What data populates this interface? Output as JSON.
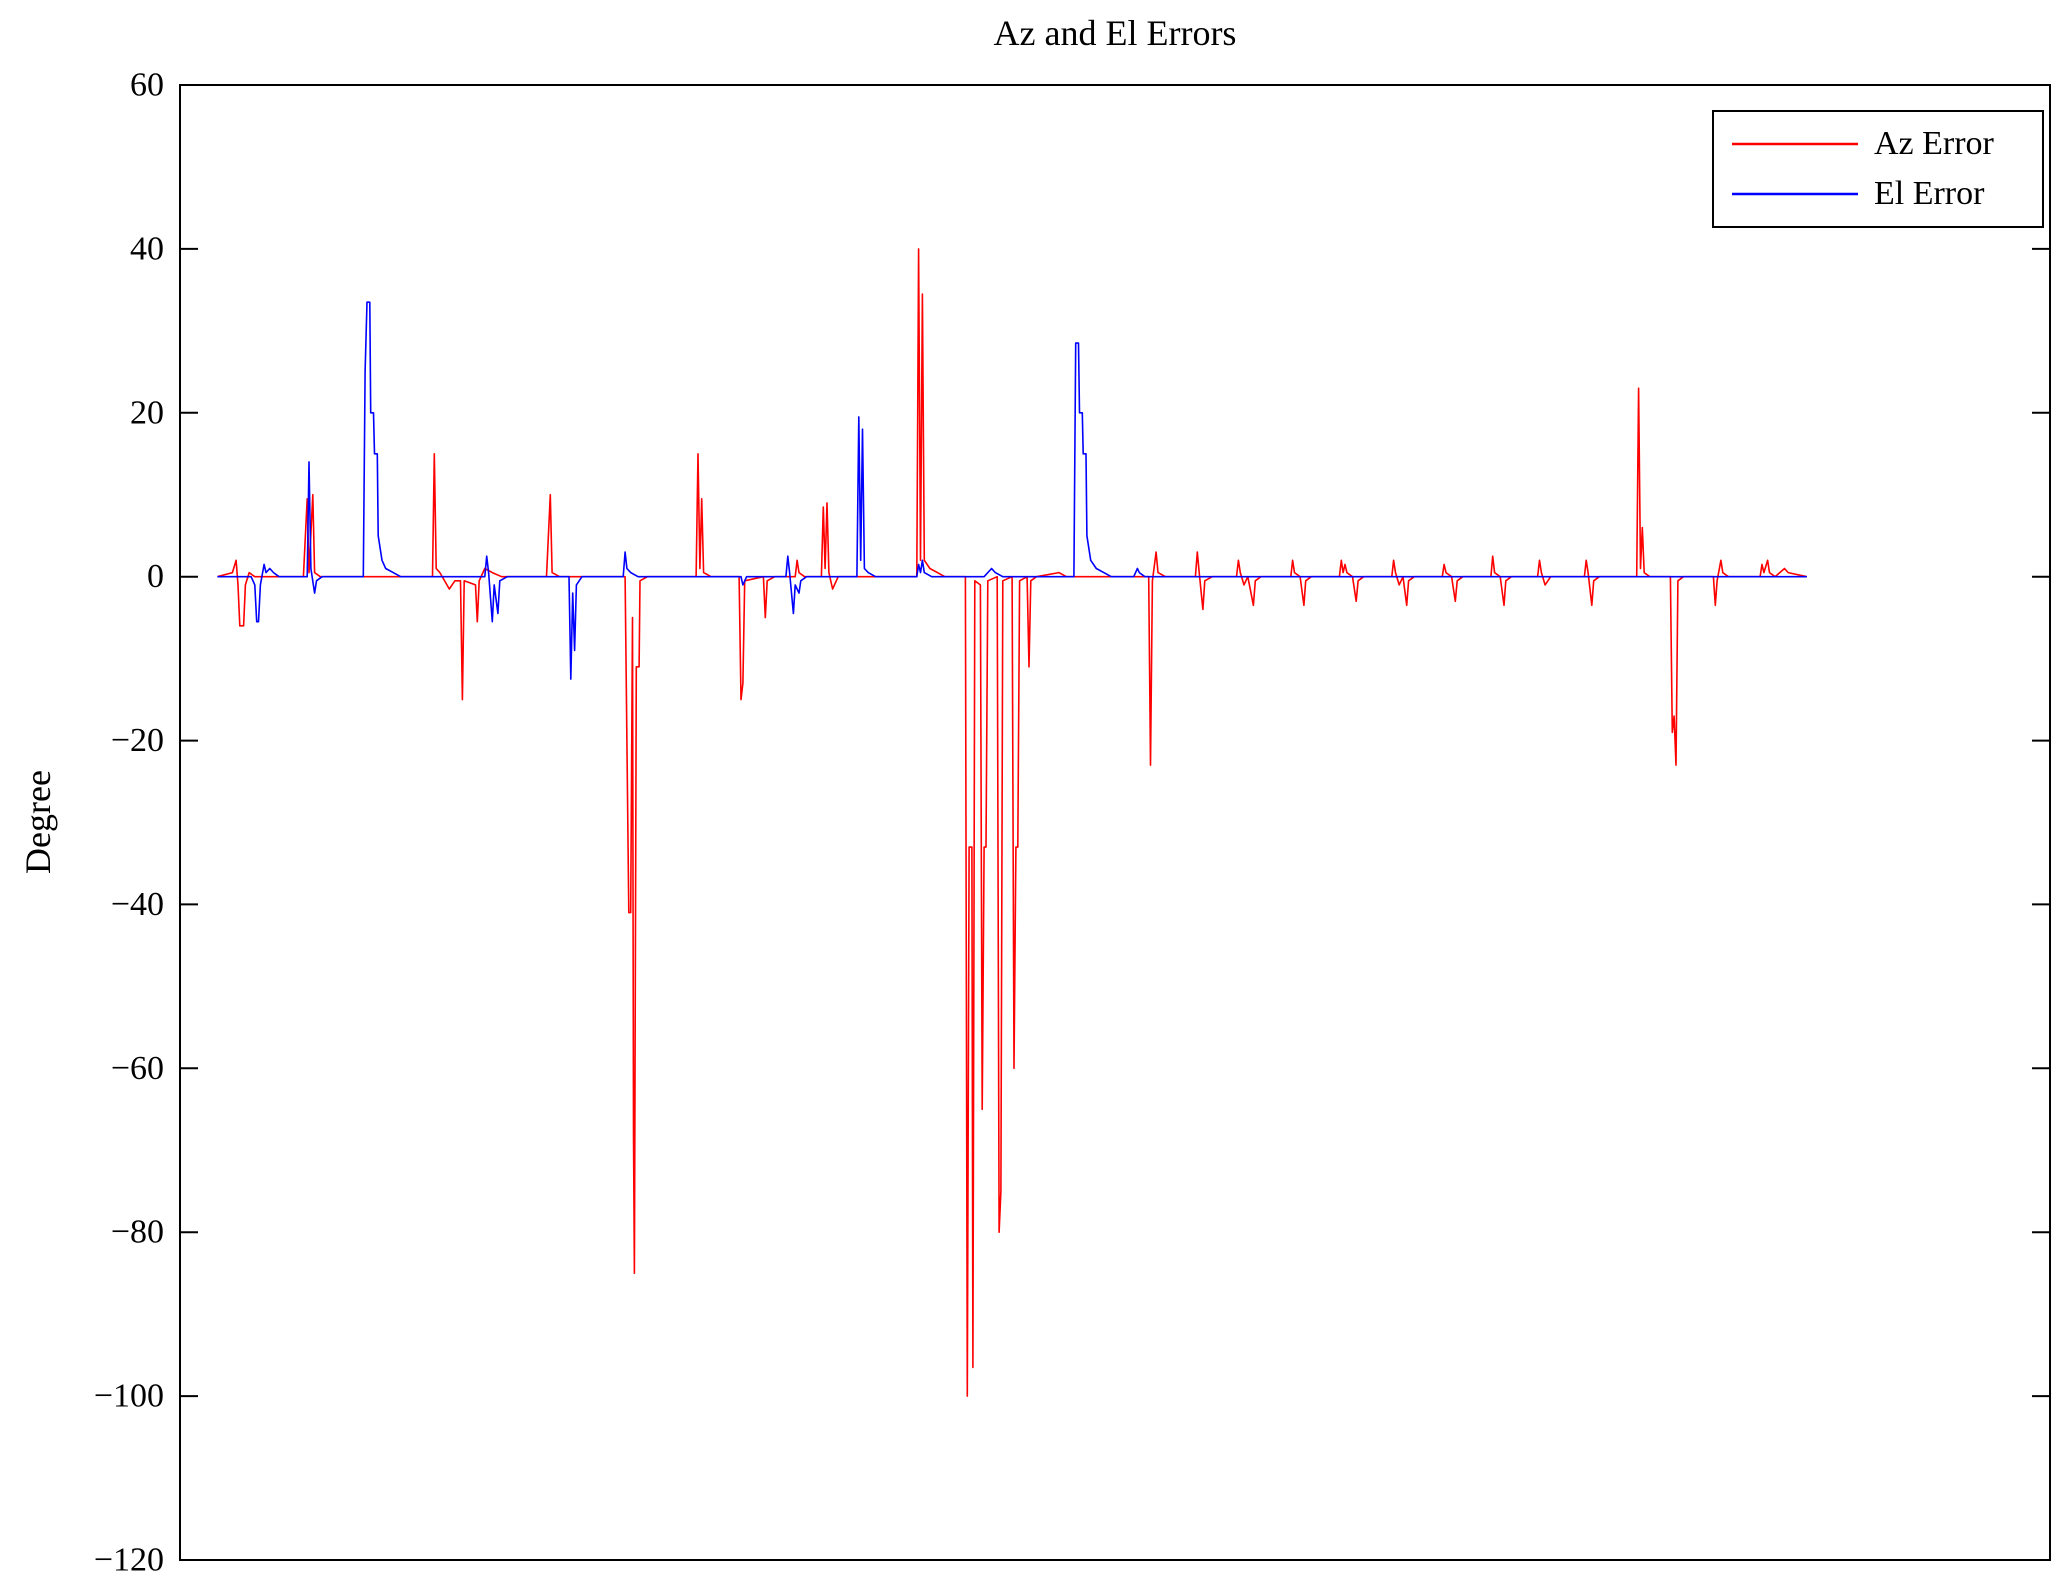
{
  "figure": {
    "title": "Az and El Errors",
    "ylabel": "Degree"
  },
  "chart_data": {
    "type": "line",
    "title": "Az and El Errors",
    "xlabel": "",
    "ylabel": "Degree",
    "ylim": [
      -120,
      60
    ],
    "xlim": [
      0,
      1
    ],
    "yticks": [
      60,
      40,
      20,
      0,
      -20,
      -40,
      -60,
      -80,
      -100,
      -120
    ],
    "x_tick_labels_visible": false,
    "grid": false,
    "background_color": "#ffffff",
    "axis_color": "#000000",
    "legend": {
      "position": "top-right",
      "entries": [
        "Az Error",
        "El Error"
      ]
    },
    "series": [
      {
        "name": "Az Error",
        "color": "#ff0000",
        "points": [
          [
            0.02,
            0
          ],
          [
            0.028,
            0.5
          ],
          [
            0.03,
            2
          ],
          [
            0.031,
            -1
          ],
          [
            0.032,
            -6
          ],
          [
            0.034,
            -6
          ],
          [
            0.035,
            -1
          ],
          [
            0.037,
            0.5
          ],
          [
            0.04,
            0
          ],
          [
            0.066,
            0
          ],
          [
            0.068,
            9.5
          ],
          [
            0.069,
            0.5
          ],
          [
            0.071,
            10
          ],
          [
            0.072,
            0.5
          ],
          [
            0.075,
            0
          ],
          [
            0.135,
            0
          ],
          [
            0.136,
            15
          ],
          [
            0.137,
            1
          ],
          [
            0.139,
            0.5
          ],
          [
            0.144,
            -1.5
          ],
          [
            0.147,
            -0.5
          ],
          [
            0.15,
            -0.5
          ],
          [
            0.151,
            -15
          ],
          [
            0.152,
            -0.5
          ],
          [
            0.158,
            -1
          ],
          [
            0.159,
            -5.5
          ],
          [
            0.16,
            -0.5
          ],
          [
            0.163,
            1
          ],
          [
            0.167,
            0.5
          ],
          [
            0.172,
            0
          ],
          [
            0.196,
            0
          ],
          [
            0.198,
            10
          ],
          [
            0.199,
            0.5
          ],
          [
            0.203,
            0
          ],
          [
            0.238,
            0
          ],
          [
            0.24,
            -41
          ],
          [
            0.241,
            -41
          ],
          [
            0.242,
            -5
          ],
          [
            0.2425,
            -68
          ],
          [
            0.243,
            -85
          ],
          [
            0.244,
            -11
          ],
          [
            0.2455,
            -11
          ],
          [
            0.246,
            -0.5
          ],
          [
            0.25,
            0
          ],
          [
            0.276,
            0
          ],
          [
            0.277,
            15
          ],
          [
            0.278,
            1
          ],
          [
            0.279,
            9.5
          ],
          [
            0.28,
            0.5
          ],
          [
            0.284,
            0
          ],
          [
            0.299,
            0
          ],
          [
            0.3,
            -15
          ],
          [
            0.301,
            -13
          ],
          [
            0.302,
            -0.5
          ],
          [
            0.312,
            0
          ],
          [
            0.313,
            -5
          ],
          [
            0.314,
            -0.5
          ],
          [
            0.318,
            0
          ],
          [
            0.329,
            0
          ],
          [
            0.33,
            2
          ],
          [
            0.331,
            0.5
          ],
          [
            0.334,
            0
          ],
          [
            0.343,
            0
          ],
          [
            0.344,
            8.5
          ],
          [
            0.345,
            1
          ],
          [
            0.346,
            9
          ],
          [
            0.347,
            0.5
          ],
          [
            0.349,
            -1.5
          ],
          [
            0.352,
            0
          ],
          [
            0.394,
            0
          ],
          [
            0.395,
            40
          ],
          [
            0.396,
            2
          ],
          [
            0.397,
            34.5
          ],
          [
            0.398,
            2
          ],
          [
            0.401,
            1
          ],
          [
            0.405,
            0.5
          ],
          [
            0.409,
            0
          ],
          [
            0.42,
            0
          ],
          [
            0.421,
            -100
          ],
          [
            0.422,
            -33
          ],
          [
            0.4235,
            -33
          ],
          [
            0.424,
            -96.5
          ],
          [
            0.425,
            -0.5
          ],
          [
            0.428,
            -1
          ],
          [
            0.429,
            -65
          ],
          [
            0.43,
            -33
          ],
          [
            0.431,
            -33
          ],
          [
            0.432,
            -0.5
          ],
          [
            0.437,
            0
          ],
          [
            0.438,
            -80
          ],
          [
            0.439,
            -75
          ],
          [
            0.44,
            -0.5
          ],
          [
            0.445,
            0
          ],
          [
            0.446,
            -60
          ],
          [
            0.447,
            -33
          ],
          [
            0.448,
            -33
          ],
          [
            0.449,
            -0.5
          ],
          [
            0.453,
            0
          ],
          [
            0.454,
            -11
          ],
          [
            0.455,
            -0.5
          ],
          [
            0.458,
            0
          ],
          [
            0.47,
            0.5
          ],
          [
            0.474,
            0
          ],
          [
            0.518,
            0
          ],
          [
            0.519,
            -23
          ],
          [
            0.52,
            -0.5
          ],
          [
            0.522,
            3
          ],
          [
            0.523,
            0.5
          ],
          [
            0.527,
            0
          ],
          [
            0.543,
            0
          ],
          [
            0.544,
            3
          ],
          [
            0.545,
            0.5
          ],
          [
            0.547,
            -4
          ],
          [
            0.548,
            -0.5
          ],
          [
            0.552,
            0
          ],
          [
            0.565,
            0
          ],
          [
            0.566,
            2
          ],
          [
            0.567,
            0.5
          ],
          [
            0.569,
            -1
          ],
          [
            0.571,
            0
          ],
          [
            0.574,
            -3.5
          ],
          [
            0.575,
            -0.5
          ],
          [
            0.578,
            0
          ],
          [
            0.594,
            0
          ],
          [
            0.595,
            2
          ],
          [
            0.596,
            0.5
          ],
          [
            0.599,
            0
          ],
          [
            0.601,
            -3.5
          ],
          [
            0.602,
            -0.5
          ],
          [
            0.605,
            0
          ],
          [
            0.62,
            0
          ],
          [
            0.621,
            2
          ],
          [
            0.622,
            0.5
          ],
          [
            0.623,
            1.5
          ],
          [
            0.624,
            0.5
          ],
          [
            0.627,
            0
          ],
          [
            0.629,
            -3
          ],
          [
            0.63,
            -0.5
          ],
          [
            0.633,
            0
          ],
          [
            0.648,
            0
          ],
          [
            0.649,
            2
          ],
          [
            0.65,
            0.5
          ],
          [
            0.652,
            -1
          ],
          [
            0.654,
            0
          ],
          [
            0.656,
            -3.5
          ],
          [
            0.657,
            -0.5
          ],
          [
            0.66,
            0
          ],
          [
            0.675,
            0
          ],
          [
            0.676,
            1.5
          ],
          [
            0.677,
            0.5
          ],
          [
            0.68,
            0
          ],
          [
            0.682,
            -3
          ],
          [
            0.683,
            -0.5
          ],
          [
            0.686,
            0
          ],
          [
            0.701,
            0
          ],
          [
            0.702,
            2.5
          ],
          [
            0.703,
            0.5
          ],
          [
            0.706,
            0
          ],
          [
            0.708,
            -3.5
          ],
          [
            0.709,
            -0.5
          ],
          [
            0.712,
            0
          ],
          [
            0.726,
            0
          ],
          [
            0.727,
            2
          ],
          [
            0.728,
            0.5
          ],
          [
            0.73,
            -1
          ],
          [
            0.733,
            0
          ],
          [
            0.751,
            0
          ],
          [
            0.752,
            2
          ],
          [
            0.753,
            0.5
          ],
          [
            0.755,
            -3.5
          ],
          [
            0.756,
            -0.5
          ],
          [
            0.759,
            0
          ],
          [
            0.779,
            0
          ],
          [
            0.78,
            23
          ],
          [
            0.781,
            1
          ],
          [
            0.782,
            6
          ],
          [
            0.783,
            0.5
          ],
          [
            0.786,
            0
          ],
          [
            0.797,
            0
          ],
          [
            0.798,
            -19
          ],
          [
            0.799,
            -17
          ],
          [
            0.8,
            -23
          ],
          [
            0.801,
            -0.5
          ],
          [
            0.804,
            0
          ],
          [
            0.82,
            0
          ],
          [
            0.821,
            -3.5
          ],
          [
            0.822,
            -0.5
          ],
          [
            0.824,
            2
          ],
          [
            0.825,
            0.5
          ],
          [
            0.828,
            0
          ],
          [
            0.845,
            0
          ],
          [
            0.846,
            1.5
          ],
          [
            0.847,
            0.5
          ],
          [
            0.849,
            2
          ],
          [
            0.85,
            0.5
          ],
          [
            0.853,
            0
          ],
          [
            0.858,
            1
          ],
          [
            0.86,
            0.5
          ],
          [
            0.87,
            0
          ]
        ]
      },
      {
        "name": "El Error",
        "color": "#0000ff",
        "points": [
          [
            0.02,
            0
          ],
          [
            0.038,
            0
          ],
          [
            0.04,
            -1
          ],
          [
            0.041,
            -5.5
          ],
          [
            0.042,
            -5.5
          ],
          [
            0.043,
            -1
          ],
          [
            0.045,
            1.5
          ],
          [
            0.046,
            0.5
          ],
          [
            0.048,
            1
          ],
          [
            0.05,
            0.5
          ],
          [
            0.053,
            0
          ],
          [
            0.068,
            0
          ],
          [
            0.069,
            14
          ],
          [
            0.07,
            1
          ],
          [
            0.072,
            -2
          ],
          [
            0.073,
            -0.5
          ],
          [
            0.076,
            0
          ],
          [
            0.098,
            0
          ],
          [
            0.099,
            25
          ],
          [
            0.1,
            33.5
          ],
          [
            0.1015,
            33.5
          ],
          [
            0.102,
            20
          ],
          [
            0.1035,
            20
          ],
          [
            0.104,
            15
          ],
          [
            0.1055,
            15
          ],
          [
            0.106,
            5
          ],
          [
            0.108,
            2
          ],
          [
            0.11,
            1
          ],
          [
            0.114,
            0.5
          ],
          [
            0.118,
            0
          ],
          [
            0.163,
            0
          ],
          [
            0.164,
            2.5
          ],
          [
            0.165,
            0.5
          ],
          [
            0.167,
            -5.5
          ],
          [
            0.168,
            -1
          ],
          [
            0.17,
            -4.5
          ],
          [
            0.171,
            -0.5
          ],
          [
            0.175,
            0
          ],
          [
            0.208,
            0
          ],
          [
            0.209,
            -12.5
          ],
          [
            0.21,
            -2
          ],
          [
            0.211,
            -9
          ],
          [
            0.212,
            -1
          ],
          [
            0.215,
            0
          ],
          [
            0.237,
            0
          ],
          [
            0.238,
            3
          ],
          [
            0.239,
            1
          ],
          [
            0.241,
            0.5
          ],
          [
            0.245,
            0
          ],
          [
            0.3,
            0
          ],
          [
            0.301,
            -1
          ],
          [
            0.303,
            0
          ],
          [
            0.324,
            0
          ],
          [
            0.325,
            2.5
          ],
          [
            0.326,
            0.5
          ],
          [
            0.328,
            -4.5
          ],
          [
            0.329,
            -1
          ],
          [
            0.331,
            -2
          ],
          [
            0.332,
            -0.5
          ],
          [
            0.335,
            0
          ],
          [
            0.362,
            0
          ],
          [
            0.363,
            19.5
          ],
          [
            0.364,
            2
          ],
          [
            0.365,
            18
          ],
          [
            0.366,
            1
          ],
          [
            0.368,
            0.5
          ],
          [
            0.372,
            0
          ],
          [
            0.394,
            0
          ],
          [
            0.395,
            1.5
          ],
          [
            0.396,
            0.5
          ],
          [
            0.397,
            2
          ],
          [
            0.398,
            0.5
          ],
          [
            0.402,
            0
          ],
          [
            0.43,
            0
          ],
          [
            0.432,
            0.5
          ],
          [
            0.434,
            1
          ],
          [
            0.436,
            0.5
          ],
          [
            0.44,
            0
          ],
          [
            0.478,
            0
          ],
          [
            0.479,
            28.5
          ],
          [
            0.4805,
            28.5
          ],
          [
            0.481,
            20
          ],
          [
            0.4825,
            20
          ],
          [
            0.483,
            15
          ],
          [
            0.4845,
            15
          ],
          [
            0.485,
            5
          ],
          [
            0.487,
            2
          ],
          [
            0.49,
            1
          ],
          [
            0.494,
            0.5
          ],
          [
            0.498,
            0
          ],
          [
            0.51,
            0
          ],
          [
            0.512,
            1
          ],
          [
            0.513,
            0.5
          ],
          [
            0.516,
            0
          ],
          [
            0.87,
            0
          ]
        ]
      }
    ]
  }
}
